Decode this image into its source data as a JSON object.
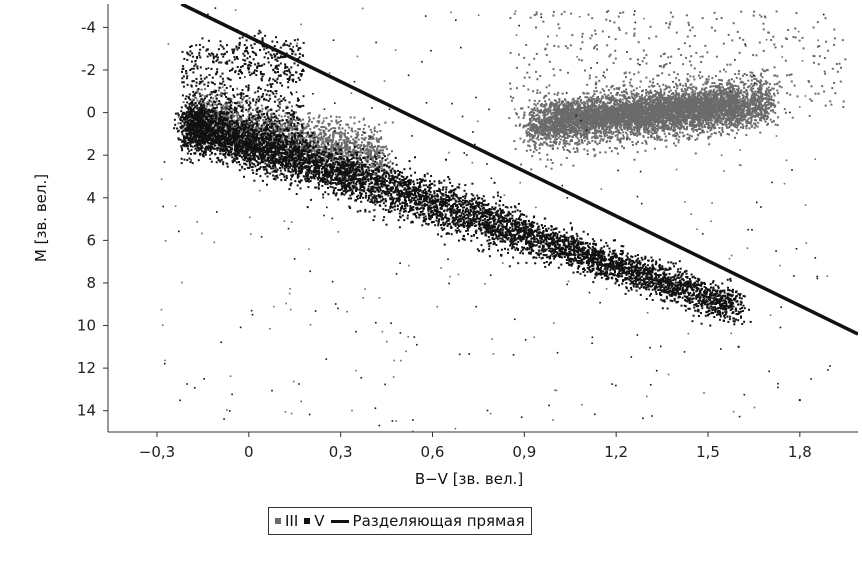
{
  "chart_data": {
    "type": "scatter",
    "xlabel": "B−V [зв. вел.]",
    "ylabel": "M [зв. вел.]",
    "xlim": [
      -0.46,
      1.99
    ],
    "ylim": [
      15.0,
      -5.1
    ],
    "y_inverted": true,
    "x_ticks": [
      -0.3,
      0,
      0.3,
      0.6,
      0.9,
      1.2,
      1.5,
      1.8
    ],
    "x_tick_labels": [
      "−0,3",
      "0",
      "0,3",
      "0,6",
      "0,9",
      "1,2",
      "1,5",
      "1,8"
    ],
    "y_ticks": [
      -4,
      -2,
      0,
      2,
      4,
      6,
      8,
      10,
      12,
      14
    ],
    "y_tick_labels": [
      "-4",
      "-2",
      "0",
      "2",
      "4",
      "6",
      "8",
      "10",
      "12",
      "14"
    ],
    "grid": false,
    "legend_position": "bottom-center",
    "series": [
      {
        "name": "III",
        "marker": "square",
        "color": "#6b6b6b",
        "description_points": [
          [
            1.0,
            0.5
          ],
          [
            1.1,
            0.4
          ],
          [
            1.2,
            0.3
          ],
          [
            1.3,
            0.0
          ],
          [
            1.4,
            -0.3
          ],
          [
            1.5,
            -0.5
          ],
          [
            1.6,
            -0.8
          ],
          [
            -0.1,
            0.0
          ],
          [
            0.0,
            0.5
          ],
          [
            0.1,
            0.9
          ],
          [
            0.3,
            1.6
          ]
        ]
      },
      {
        "name": "V",
        "marker": "square",
        "color": "#111111",
        "description_points": [
          [
            -0.15,
            0.5
          ],
          [
            0.0,
            1.7
          ],
          [
            0.2,
            2.3
          ],
          [
            0.4,
            3.5
          ],
          [
            0.6,
            4.3
          ],
          [
            0.8,
            5.4
          ],
          [
            1.0,
            6.5
          ],
          [
            1.2,
            7.3
          ],
          [
            1.4,
            8.3
          ],
          [
            1.5,
            9.5
          ],
          [
            1.6,
            11.0
          ],
          [
            1.8,
            13.5
          ]
        ]
      },
      {
        "name": "Разделяющая прямая",
        "type": "line",
        "color": "#111111",
        "x": [
          -0.22,
          1.99
        ],
        "y": [
          -5.1,
          10.4
        ]
      }
    ]
  },
  "legend": {
    "items": [
      {
        "label": "III",
        "color": "#6b6b6b"
      },
      {
        "label": "V",
        "color": "#111111"
      },
      {
        "label": "Разделяющая прямая",
        "color": "#111111"
      }
    ]
  }
}
